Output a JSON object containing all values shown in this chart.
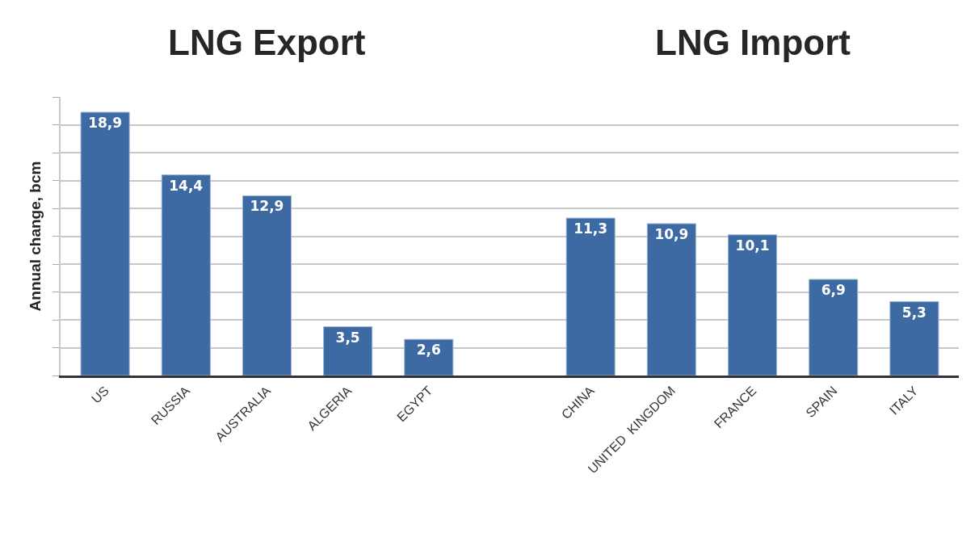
{
  "chart_data": {
    "type": "bar",
    "annotations": [
      "LNG Export",
      "LNG Import"
    ],
    "ylabel": "Annual change, bcm",
    "categories": [
      "US",
      "RUSSIA",
      "AUSTRALIA",
      "ALGERIA",
      "EGYPT",
      null,
      "CHINA",
      "UNITED  KINGDOM",
      "FRANCE",
      "SPAIN",
      "ITALY"
    ],
    "values": [
      18.9,
      14.4,
      12.9,
      3.5,
      2.6,
      null,
      11.3,
      10.9,
      10.1,
      6.9,
      5.3
    ],
    "value_labels": [
      "18,9",
      "14,4",
      "12,9",
      "3,5",
      "2,6",
      null,
      "11,3",
      "10,9",
      "10,1",
      "6,9",
      "5,3"
    ],
    "color": "#3e6aa3",
    "ylim": [
      0,
      20
    ],
    "yticks": [
      {
        "value": 0,
        "label": null
      },
      {
        "value": 2,
        "label": null
      },
      {
        "value": 4,
        "label": null
      },
      {
        "value": 6,
        "label": null
      },
      {
        "value": 8,
        "label": null
      },
      {
        "value": 10,
        "label": null
      },
      {
        "value": 12,
        "label": null
      },
      {
        "value": 14,
        "label": null
      },
      {
        "value": 16,
        "label": null
      },
      {
        "value": 18,
        "label": null
      },
      {
        "value": 20,
        "label": null
      }
    ],
    "grid": "y",
    "tick_labels": "x"
  }
}
